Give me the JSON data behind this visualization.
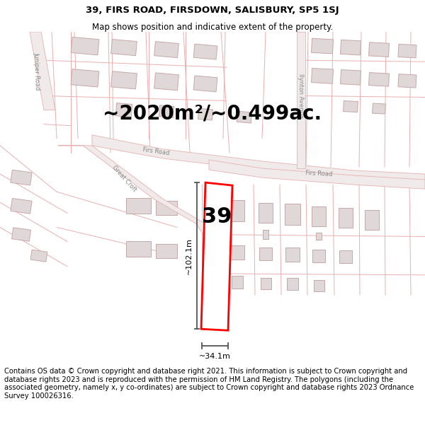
{
  "title_line1": "39, FIRS ROAD, FIRSDOWN, SALISBURY, SP5 1SJ",
  "title_line2": "Map shows position and indicative extent of the property.",
  "area_text": "~2020m²/~0.499ac.",
  "number_label": "39",
  "dim_vertical": "~102.1m",
  "dim_horizontal": "~34.1m",
  "footer_text": "Contains OS data © Crown copyright and database right 2021. This information is subject to Crown copyright and database rights 2023 and is reproduced with the permission of HM Land Registry. The polygons (including the associated geometry, namely x, y co-ordinates) are subject to Crown copyright and database rights 2023 Ordnance Survey 100026316.",
  "bg_color": "#ffffff",
  "map_bg": "#f9f6f6",
  "road_fill": "#f0e8e8",
  "road_edge": "#d4a8a8",
  "plot_line_color": "#e8b0b0",
  "building_fill": "#e0d8d8",
  "building_edge": "#c8a8a8",
  "highlight_color": "#ff0000",
  "dim_line_color": "#555555",
  "title_fontsize": 9.5,
  "subtitle_fontsize": 8.5,
  "area_fontsize": 20,
  "num_label_fontsize": 22,
  "footer_fontsize": 7.2,
  "road_label_color": "#888888",
  "road_label_size": 6.0
}
